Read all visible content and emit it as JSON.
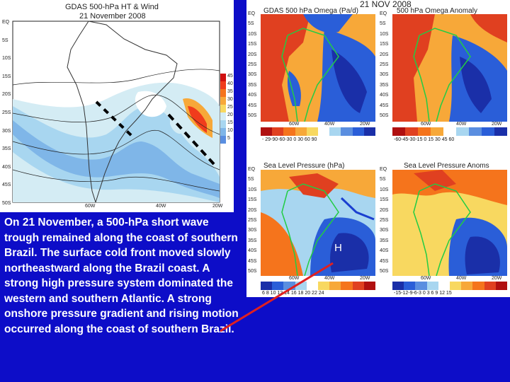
{
  "left_map": {
    "title": "GDAS 500-hPa HT & Wind",
    "date": "21 November 2008",
    "lat_labels": [
      "EQ",
      "5S",
      "10S",
      "15S",
      "20S",
      "25S",
      "30S",
      "35S",
      "40S",
      "45S",
      "50S"
    ],
    "lon_labels": [
      "60W",
      "40W",
      "20W"
    ],
    "legend_values": [
      "45",
      "40",
      "35",
      "30",
      "25",
      "20",
      "15",
      "10",
      "5"
    ],
    "legend_colors": [
      "#d01010",
      "#f03c1c",
      "#f5741c",
      "#f7a839",
      "#f8d860",
      "#d4ecf4",
      "#a8d6f0",
      "#7fb6e8",
      "#5a8ee0"
    ]
  },
  "right_header": {
    "date": "21 NOV 2008"
  },
  "panels": [
    {
      "title": "GDAS 500 hPa Omega (Pa/d)",
      "colorbar": "- 29-90-60-30 0 30 60 90"
    },
    {
      "title": "500 hPa Omega Anomaly",
      "colorbar": "-60-45-30-15 0 15 30 45 60"
    },
    {
      "title": "Sea Level Pressure (hPa)",
      "colorbar": "6 8 10 12 14 16 18 20 22 24"
    },
    {
      "title": "Sea Level Pressure Anoms",
      "colorbar": "-15-12-9-6-3 0 3 6 9 12 15"
    }
  ],
  "right_lat_labels": [
    "EQ",
    "5S",
    "10S",
    "15S",
    "20S",
    "25S",
    "30S",
    "35S",
    "40S",
    "45S",
    "50S"
  ],
  "right_lon_labels": [
    "60W",
    "40W",
    "20W"
  ],
  "high_marker": "H",
  "caption": "On 21 November, a 500-hPa short wave trough remained along the coast of southern Brazil. The surface cold front moved slowly northeastward along the Brazil coast. A strong high pressure system dominated the western and southern Atlantic. A strong onshore pressure gradient and rising motion occurred along the coast of southern Brazil.",
  "colors": {
    "background": "#0d0dc8",
    "arrow": "#e02020",
    "front": "#1a3fd0"
  }
}
